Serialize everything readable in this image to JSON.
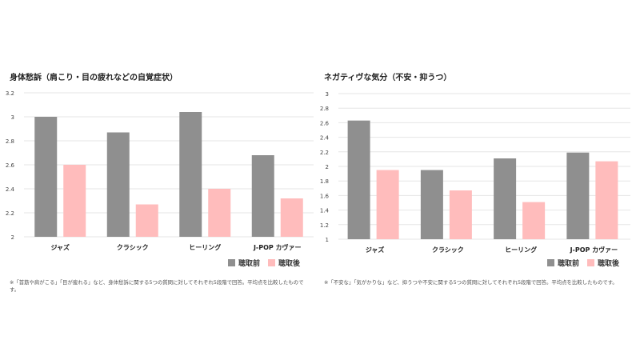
{
  "legend": {
    "before": "聴取前",
    "after": "聴取後"
  },
  "colors": {
    "before": "#8f8f8f",
    "after": "#ffbcbc",
    "grid": "#e6e6e6"
  },
  "left": {
    "title": "身体愁訴（肩こり・目の疲れなどの自覚症状）",
    "note": "※「首筋や肩がこる」「目が疲れる」など、身体愁訴に関する5つの質問に対してそれぞれ5段階で回答。平均点を比較したものです。"
  },
  "right": {
    "title": "ネガティヴな気分（不安・抑うつ）",
    "note": "※「不安な」「気がかりな」など、抑うつや不安に関する5つの質問に対してそれぞれ5段階で回答。平均点を比較したものです。"
  },
  "chart_data": [
    {
      "type": "bar",
      "title": "身体愁訴（肩こり・目の疲れなどの自覚症状）",
      "categories": [
        "ジャズ",
        "クラシック",
        "ヒーリング",
        "J-POP カヴァー"
      ],
      "series": [
        {
          "name": "聴取前",
          "values": [
            3.0,
            2.87,
            3.04,
            2.68
          ]
        },
        {
          "name": "聴取後",
          "values": [
            2.6,
            2.27,
            2.4,
            2.32
          ]
        }
      ],
      "ylim": [
        2,
        3.2
      ],
      "yticks": [
        "2",
        "2.2",
        "2.4",
        "2.6",
        "2.8",
        "3",
        "3.2"
      ],
      "grid": true,
      "legend": "bottom-right"
    },
    {
      "type": "bar",
      "title": "ネガティヴな気分（不安・抑うつ）",
      "categories": [
        "ジャズ",
        "クラシック",
        "ヒーリング",
        "J-POP カヴァー"
      ],
      "series": [
        {
          "name": "聴取前",
          "values": [
            2.63,
            1.95,
            2.11,
            2.19
          ]
        },
        {
          "name": "聴取後",
          "values": [
            1.95,
            1.67,
            1.51,
            2.07
          ]
        }
      ],
      "ylim": [
        1,
        3
      ],
      "yticks": [
        "1",
        "1.2",
        "1.4",
        "1.6",
        "1.8",
        "2",
        "2.2",
        "2.4",
        "2.6",
        "2.8",
        "3"
      ],
      "grid": true,
      "legend": "bottom-right"
    }
  ]
}
